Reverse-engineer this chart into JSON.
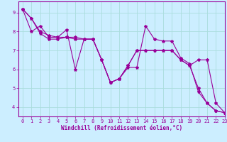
{
  "xlabel": "Windchill (Refroidissement éolien,°C)",
  "background_color": "#cceeff",
  "grid_color": "#aadddd",
  "line_color": "#990099",
  "xlim": [
    -0.5,
    23
  ],
  "ylim": [
    3.5,
    9.6
  ],
  "yticks": [
    4,
    5,
    6,
    7,
    8,
    9
  ],
  "xticks": [
    0,
    1,
    2,
    3,
    4,
    5,
    6,
    7,
    8,
    9,
    10,
    11,
    12,
    13,
    14,
    15,
    16,
    17,
    18,
    19,
    20,
    21,
    22,
    23
  ],
  "series": [
    [
      9.2,
      8.7,
      8.0,
      7.8,
      7.7,
      8.1,
      6.0,
      7.6,
      7.6,
      6.5,
      5.3,
      5.5,
      6.1,
      6.1,
      8.3,
      7.6,
      7.5,
      7.5,
      6.6,
      6.3,
      4.8,
      4.2,
      3.8,
      3.7
    ],
    [
      9.2,
      8.0,
      8.3,
      7.7,
      7.7,
      7.7,
      7.6,
      7.6,
      7.6,
      6.5,
      5.3,
      5.5,
      6.2,
      7.0,
      7.0,
      7.0,
      7.0,
      7.0,
      6.5,
      6.2,
      6.5,
      6.5,
      4.2,
      3.7
    ],
    [
      9.2,
      8.7,
      7.9,
      7.6,
      7.6,
      7.7,
      7.7,
      7.6,
      7.6,
      6.5,
      5.3,
      5.5,
      6.2,
      7.0,
      7.0,
      7.0,
      7.0,
      7.0,
      6.5,
      6.2,
      5.0,
      4.2,
      3.8,
      3.7
    ]
  ]
}
